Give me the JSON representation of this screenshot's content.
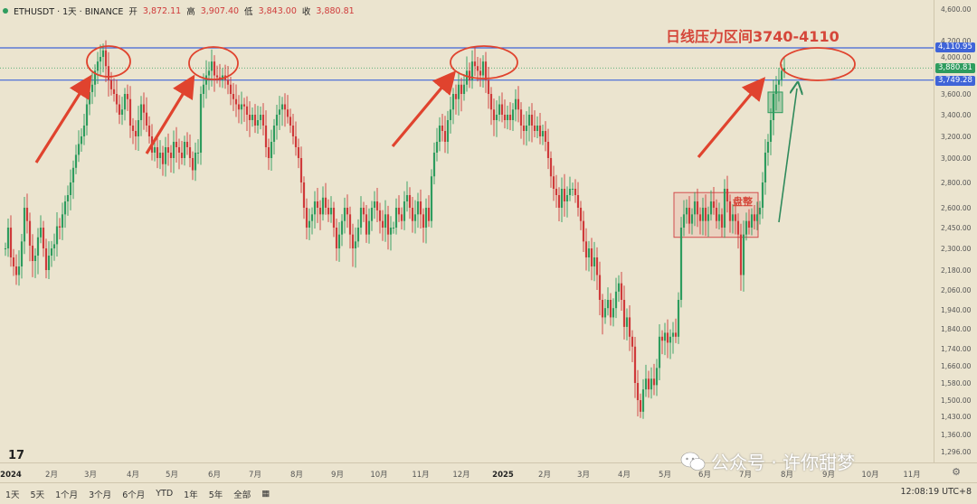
{
  "legend": {
    "symbol": "ETHUSDT · 1天 · BINANCE",
    "open_label": "开",
    "open": "3,872.11",
    "high_label": "高",
    "high": "3,907.40",
    "low_label": "低",
    "low": "3,843.00",
    "close_label": "收",
    "close": "3,880.81"
  },
  "price_tags": {
    "upper": "4,110.95",
    "current": "3,880.81",
    "lower": "3,749.28"
  },
  "annotations": {
    "resistance_text": "日线压力区间3740-4110",
    "consolidation_text": "盘整"
  },
  "toolbar": {
    "ranges": [
      "1天",
      "5天",
      "1个月",
      "3个月",
      "6个月",
      "YTD",
      "1年",
      "5年",
      "全部"
    ],
    "time": "12:08:19 UTC+8"
  },
  "watermark": {
    "text": "公众号 · 许你甜梦"
  },
  "colors": {
    "up": "#2e9c5e",
    "down": "#cf3a3a",
    "resistance_line": "#3f64d8",
    "annotation_red": "#e0432e",
    "arrow_green": "#2f8a5c",
    "background": "#ebe4cf"
  },
  "chart_data": {
    "type": "candlestick",
    "title": "ETHUSDT · 1天 · BINANCE",
    "y_ticks": [
      4600,
      4200,
      4000,
      3600,
      3400,
      3200,
      3000,
      2800,
      2600,
      2450,
      2300,
      2180,
      2060,
      1940,
      1840,
      1740,
      1660,
      1580,
      1500,
      1430,
      1360,
      1296
    ],
    "y_tick_labels": [
      "4,600.00",
      "4,200.00",
      "4,000.00",
      "3,600.00",
      "3,400.00",
      "3,200.00",
      "3,000.00",
      "2,800.00",
      "2,600.00",
      "2,450.00",
      "2,300.00",
      "2,180.00",
      "2,060.00",
      "1,940.00",
      "1,840.00",
      "1,740.00",
      "1,660.00",
      "1,580.00",
      "1,500.00",
      "1,430.00",
      "1,360.00",
      "1,296.00"
    ],
    "x_ticks": [
      "2024",
      "2月",
      "3月",
      "4月",
      "5月",
      "6月",
      "7月",
      "8月",
      "9月",
      "10月",
      "11月",
      "12月",
      "2025",
      "2月",
      "3月",
      "4月",
      "5月",
      "6月",
      "7月",
      "8月",
      "9月",
      "10月",
      "11月"
    ],
    "resistance_lines": [
      4110.95,
      3749.28
    ],
    "resistance_range": [
      3740,
      4110
    ],
    "consolidation_range": [
      2380,
      2720
    ],
    "series": [
      {
        "values": [
          [
            0,
            2300
          ],
          [
            3,
            2450
          ],
          [
            6,
            2250
          ],
          [
            9,
            2200
          ],
          [
            12,
            2150
          ],
          [
            15,
            2200
          ],
          [
            18,
            2350
          ],
          [
            21,
            2600
          ],
          [
            24,
            2500
          ],
          [
            27,
            2320
          ],
          [
            30,
            2230
          ],
          [
            33,
            2260
          ],
          [
            36,
            2380
          ],
          [
            39,
            2450
          ],
          [
            42,
            2300
          ],
          [
            45,
            2180
          ],
          [
            48,
            2260
          ],
          [
            51,
            2300
          ],
          [
            54,
            2330
          ],
          [
            57,
            2460
          ],
          [
            60,
            2450
          ],
          [
            63,
            2550
          ],
          [
            66,
            2650
          ],
          [
            69,
            2700
          ],
          [
            72,
            2800
          ],
          [
            75,
            2920
          ],
          [
            78,
            3030
          ],
          [
            81,
            3130
          ],
          [
            84,
            3200
          ],
          [
            87,
            3300
          ],
          [
            90,
            3500
          ],
          [
            93,
            3620
          ],
          [
            96,
            3700
          ],
          [
            99,
            3850
          ],
          [
            102,
            3950
          ],
          [
            105,
            4000
          ],
          [
            108,
            4080
          ],
          [
            111,
            3900
          ],
          [
            114,
            3750
          ],
          [
            117,
            3650
          ],
          [
            120,
            3600
          ],
          [
            123,
            3500
          ],
          [
            126,
            3400
          ],
          [
            129,
            3450
          ],
          [
            132,
            3600
          ],
          [
            135,
            3550
          ],
          [
            138,
            3300
          ],
          [
            141,
            3250
          ],
          [
            144,
            3200
          ],
          [
            147,
            3350
          ],
          [
            150,
            3500
          ],
          [
            153,
            3420
          ],
          [
            156,
            3300
          ],
          [
            159,
            3200
          ],
          [
            162,
            3050
          ],
          [
            165,
            3100
          ],
          [
            168,
            3000
          ],
          [
            171,
            3050
          ],
          [
            174,
            2950
          ],
          [
            177,
            3100
          ],
          [
            180,
            3050
          ],
          [
            183,
            3000
          ],
          [
            186,
            3150
          ],
          [
            189,
            3100
          ],
          [
            192,
            3050
          ],
          [
            195,
            3000
          ],
          [
            198,
            3150
          ],
          [
            201,
            3100
          ],
          [
            204,
            3000
          ],
          [
            207,
            2900
          ],
          [
            210,
            3050
          ],
          [
            213,
            3050
          ],
          [
            216,
            3600
          ],
          [
            219,
            3700
          ],
          [
            222,
            3800
          ],
          [
            225,
            3850
          ],
          [
            228,
            3950
          ],
          [
            231,
            3800
          ],
          [
            234,
            3780
          ],
          [
            237,
            3750
          ],
          [
            240,
            3800
          ],
          [
            243,
            3750
          ],
          [
            246,
            3700
          ],
          [
            249,
            3600
          ],
          [
            252,
            3550
          ],
          [
            255,
            3500
          ],
          [
            258,
            3450
          ],
          [
            261,
            3500
          ],
          [
            264,
            3480
          ],
          [
            267,
            3400
          ],
          [
            270,
            3350
          ],
          [
            273,
            3400
          ],
          [
            276,
            3300
          ],
          [
            279,
            3350
          ],
          [
            282,
            3400
          ],
          [
            285,
            3300
          ],
          [
            288,
            3100
          ],
          [
            291,
            3000
          ],
          [
            294,
            3150
          ],
          [
            297,
            3300
          ],
          [
            300,
            3400
          ],
          [
            303,
            3450
          ],
          [
            306,
            3500
          ],
          [
            309,
            3450
          ],
          [
            312,
            3380
          ],
          [
            315,
            3300
          ],
          [
            318,
            3200
          ],
          [
            321,
            3100
          ],
          [
            324,
            3000
          ],
          [
            327,
            2800
          ],
          [
            330,
            2600
          ],
          [
            333,
            2450
          ],
          [
            336,
            2500
          ],
          [
            339,
            2550
          ],
          [
            342,
            2650
          ],
          [
            345,
            2600
          ],
          [
            348,
            2550
          ],
          [
            351,
            2680
          ],
          [
            354,
            2600
          ],
          [
            357,
            2550
          ],
          [
            360,
            2600
          ],
          [
            363,
            2450
          ],
          [
            366,
            2300
          ],
          [
            369,
            2400
          ],
          [
            372,
            2500
          ],
          [
            375,
            2600
          ],
          [
            378,
            2550
          ],
          [
            381,
            2400
          ],
          [
            384,
            2300
          ],
          [
            387,
            2350
          ],
          [
            390,
            2450
          ],
          [
            393,
            2600
          ],
          [
            396,
            2550
          ],
          [
            399,
            2400
          ],
          [
            402,
            2500
          ],
          [
            405,
            2600
          ],
          [
            408,
            2650
          ],
          [
            411,
            2580
          ],
          [
            414,
            2500
          ],
          [
            417,
            2450
          ],
          [
            420,
            2550
          ],
          [
            423,
            2400
          ],
          [
            426,
            2450
          ],
          [
            429,
            2450
          ],
          [
            432,
            2600
          ],
          [
            435,
            2550
          ],
          [
            438,
            2500
          ],
          [
            441,
            2650
          ],
          [
            444,
            2700
          ],
          [
            447,
            2600
          ],
          [
            450,
            2500
          ],
          [
            453,
            2550
          ],
          [
            456,
            2650
          ],
          [
            459,
            2550
          ],
          [
            462,
            2450
          ],
          [
            465,
            2600
          ],
          [
            468,
            2500
          ],
          [
            471,
            2850
          ],
          [
            474,
            3050
          ],
          [
            477,
            3150
          ],
          [
            480,
            3300
          ],
          [
            483,
            3250
          ],
          [
            486,
            3150
          ],
          [
            489,
            3350
          ],
          [
            492,
            3450
          ],
          [
            495,
            3600
          ],
          [
            498,
            3550
          ],
          [
            501,
            3700
          ],
          [
            504,
            3600
          ],
          [
            507,
            3700
          ],
          [
            510,
            3850
          ],
          [
            513,
            3750
          ],
          [
            516,
            3950
          ],
          [
            519,
            3900
          ],
          [
            522,
            3850
          ],
          [
            525,
            3800
          ],
          [
            528,
            3950
          ],
          [
            531,
            3750
          ],
          [
            534,
            3600
          ],
          [
            537,
            3450
          ],
          [
            540,
            3350
          ],
          [
            543,
            3400
          ],
          [
            546,
            3500
          ],
          [
            549,
            3400
          ],
          [
            552,
            3350
          ],
          [
            555,
            3400
          ],
          [
            558,
            3350
          ],
          [
            561,
            3450
          ],
          [
            564,
            3550
          ],
          [
            567,
            3450
          ],
          [
            570,
            3300
          ],
          [
            573,
            3250
          ],
          [
            576,
            3300
          ],
          [
            579,
            3400
          ],
          [
            582,
            3300
          ],
          [
            585,
            3250
          ],
          [
            588,
            3300
          ],
          [
            591,
            3200
          ],
          [
            594,
            3250
          ],
          [
            597,
            3150
          ],
          [
            600,
            3000
          ],
          [
            603,
            2850
          ],
          [
            606,
            2750
          ],
          [
            609,
            2700
          ],
          [
            612,
            2600
          ],
          [
            615,
            2750
          ],
          [
            618,
            2650
          ],
          [
            621,
            2700
          ],
          [
            624,
            2750
          ],
          [
            627,
            2750
          ],
          [
            630,
            2700
          ],
          [
            633,
            2600
          ],
          [
            636,
            2500
          ],
          [
            639,
            2350
          ],
          [
            642,
            2250
          ],
          [
            645,
            2300
          ],
          [
            648,
            2200
          ],
          [
            651,
            2250
          ],
          [
            654,
            2150
          ],
          [
            657,
            2000
          ],
          [
            660,
            1900
          ],
          [
            663,
            1950
          ],
          [
            666,
            2000
          ],
          [
            669,
            1900
          ],
          [
            672,
            1950
          ],
          [
            675,
            2050
          ],
          [
            678,
            2100
          ],
          [
            681,
            2000
          ],
          [
            684,
            1850
          ],
          [
            687,
            1900
          ],
          [
            690,
            1800
          ],
          [
            693,
            1750
          ],
          [
            696,
            1580
          ],
          [
            699,
            1500
          ],
          [
            702,
            1450
          ],
          [
            705,
            1550
          ],
          [
            708,
            1600
          ],
          [
            711,
            1550
          ],
          [
            714,
            1600
          ],
          [
            717,
            1570
          ],
          [
            720,
            1650
          ],
          [
            723,
            1800
          ],
          [
            726,
            1780
          ],
          [
            729,
            1820
          ],
          [
            732,
            1770
          ],
          [
            735,
            1800
          ],
          [
            738,
            1820
          ],
          [
            741,
            1800
          ],
          [
            744,
            2000
          ],
          [
            747,
            2450
          ],
          [
            750,
            2550
          ],
          [
            753,
            2600
          ],
          [
            756,
            2480
          ],
          [
            759,
            2550
          ],
          [
            762,
            2650
          ],
          [
            765,
            2550
          ],
          [
            768,
            2500
          ],
          [
            771,
            2600
          ],
          [
            774,
            2500
          ],
          [
            777,
            2550
          ],
          [
            780,
            2650
          ],
          [
            783,
            2600
          ],
          [
            786,
            2500
          ],
          [
            789,
            2550
          ],
          [
            792,
            2450
          ],
          [
            795,
            2750
          ],
          [
            798,
            2650
          ],
          [
            801,
            2500
          ],
          [
            804,
            2550
          ],
          [
            807,
            2500
          ],
          [
            810,
            2400
          ],
          [
            813,
            2150
          ],
          [
            816,
            2400
          ],
          [
            819,
            2500
          ],
          [
            822,
            2450
          ],
          [
            825,
            2550
          ],
          [
            828,
            2500
          ],
          [
            831,
            2550
          ],
          [
            834,
            2600
          ],
          [
            837,
            2800
          ],
          [
            840,
            3050
          ],
          [
            843,
            3150
          ],
          [
            846,
            3350
          ],
          [
            849,
            3600
          ],
          [
            852,
            3700
          ],
          [
            855,
            3750
          ],
          [
            858,
            3850
          ],
          [
            861,
            3880
          ]
        ]
      }
    ]
  }
}
